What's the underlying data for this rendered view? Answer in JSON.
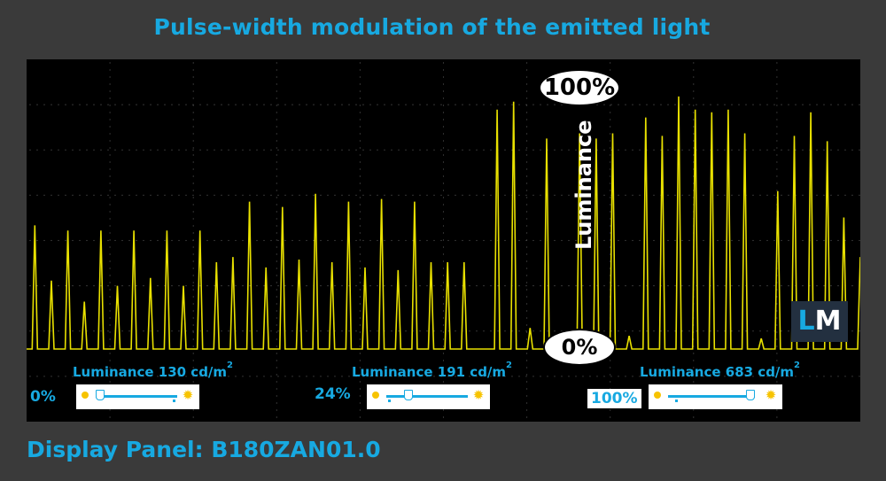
{
  "title": "Pulse-width modulation of the emitted light",
  "footer": "Display Panel: B180ZAN01.0",
  "logo": {
    "l": "L",
    "m": "M"
  },
  "annotations": {
    "top": "100%",
    "bottom": "0%",
    "axis": "Luminance"
  },
  "colors": {
    "accent": "#17a9e1",
    "trace": "#e8e000",
    "background": "#3a3a3a",
    "plot_bg": "#000000"
  },
  "panels": [
    {
      "luminance_text": "Luminance 130 cd/m",
      "sup": "2",
      "brightness": "0%",
      "slider_level": 0.0
    },
    {
      "luminance_text": "Luminance 191 cd/m",
      "sup": "2",
      "brightness": "24%",
      "slider_level": 0.24
    },
    {
      "luminance_text": "Luminance 683 cd/m",
      "sup": "2",
      "brightness": "100%",
      "slider_level": 1.0
    }
  ],
  "chart_data": {
    "type": "line",
    "title": "Pulse-width modulation of the emitted light",
    "ylabel": "Luminance",
    "ylim": [
      0,
      100
    ],
    "grid": true,
    "series": [
      {
        "values": [
          0,
          47,
          0,
          26,
          0,
          45,
          0,
          18,
          0,
          45,
          0,
          24,
          0,
          45,
          0,
          27,
          0,
          45,
          0,
          24,
          0,
          45,
          0,
          33,
          0,
          35,
          0,
          56,
          0,
          31,
          0,
          54,
          0,
          34,
          0,
          59,
          0,
          33,
          0,
          56,
          0,
          31,
          0,
          57,
          0,
          30,
          0,
          56,
          0,
          33,
          0,
          33,
          0,
          33,
          0,
          0,
          0,
          91,
          0,
          94,
          0,
          8,
          0,
          80,
          0,
          6,
          0,
          82,
          0,
          80,
          0,
          82,
          0,
          5,
          0,
          88,
          0,
          81,
          0,
          96,
          0,
          91,
          0,
          90,
          0,
          91,
          0,
          82,
          0,
          4,
          0,
          60,
          0,
          81,
          0,
          90,
          0,
          79,
          0,
          50,
          0,
          35
        ]
      }
    ]
  }
}
